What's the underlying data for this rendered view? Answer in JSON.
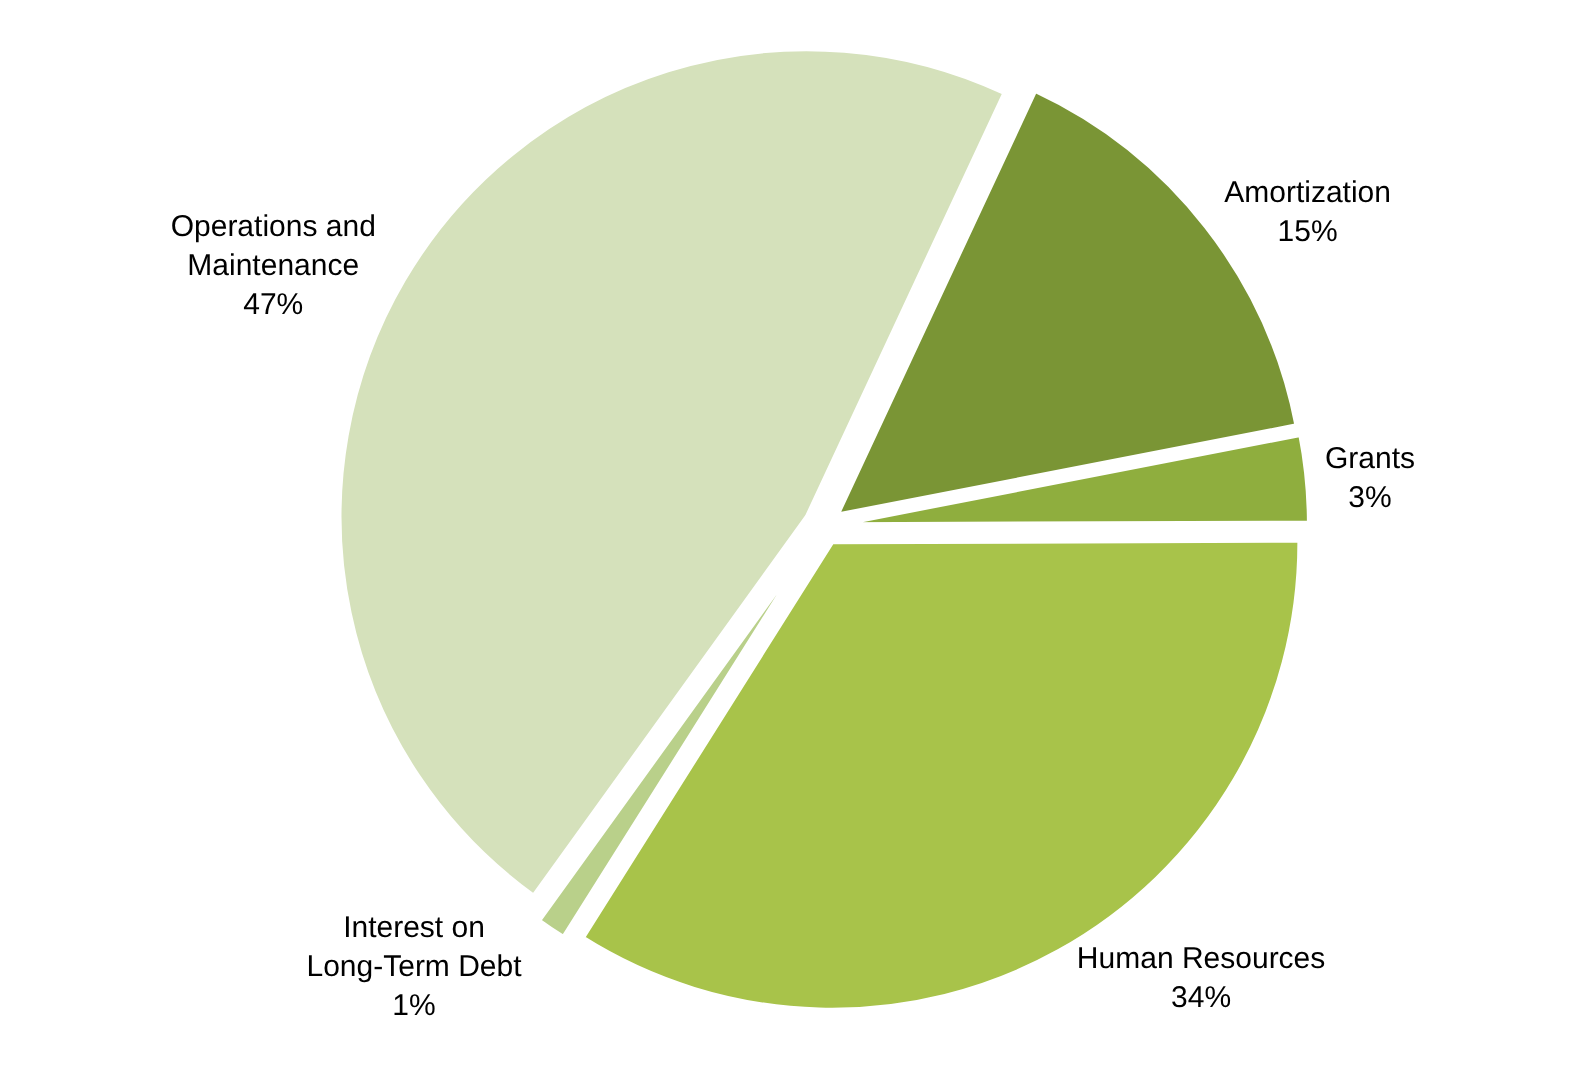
{
  "chart_data": {
    "type": "pie",
    "categories": [
      "Amortization",
      "Grants",
      "Human Resources",
      "Interest on Long-Term Debt",
      "Operations and Maintenance"
    ],
    "values": [
      15,
      3,
      34,
      1,
      47
    ],
    "value_labels": [
      "15%",
      "3%",
      "34%",
      "1%",
      "47%"
    ],
    "colors": [
      "#7a9535",
      "#8fae3e",
      "#a8c34a",
      "#b9d08a",
      "#d5e1bb"
    ],
    "legend": false
  }
}
